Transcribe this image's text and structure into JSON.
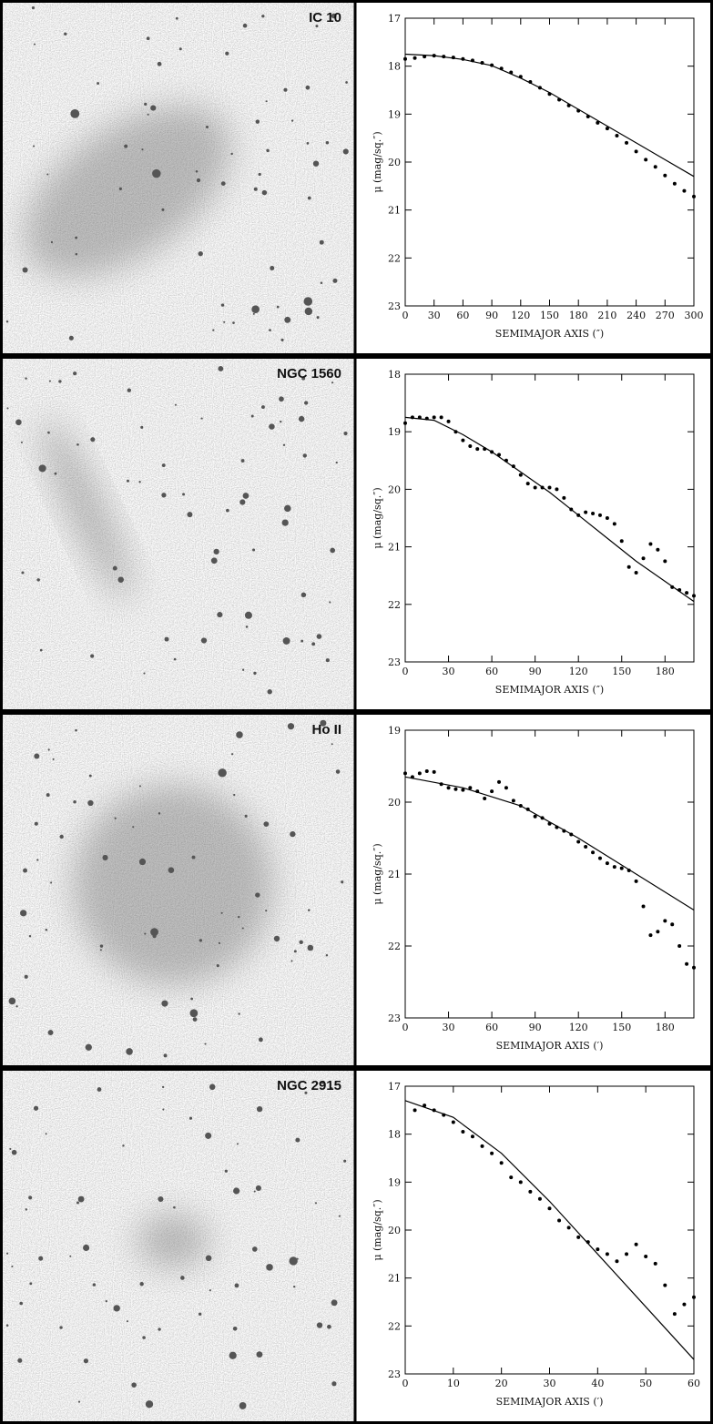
{
  "chart_data": [
    {
      "type": "scatter",
      "title": "IC 10",
      "xlabel": "SEMIMAJOR AXIS (″)",
      "ylabel": "μ (mag/sq.″)",
      "color": "#000000",
      "xlim": [
        0,
        300
      ],
      "xticks": [
        0,
        30,
        60,
        90,
        120,
        150,
        180,
        210,
        240,
        270,
        300
      ],
      "ylim": [
        23,
        17
      ],
      "yticks": [
        17,
        18,
        19,
        20,
        21,
        22,
        23
      ],
      "x": [
        0,
        10,
        20,
        30,
        40,
        50,
        60,
        70,
        80,
        90,
        100,
        110,
        120,
        130,
        140,
        150,
        160,
        170,
        180,
        190,
        200,
        210,
        220,
        230,
        240,
        250,
        260,
        270,
        280,
        290,
        300
      ],
      "values": [
        17.85,
        17.83,
        17.8,
        17.78,
        17.8,
        17.82,
        17.85,
        17.88,
        17.93,
        17.98,
        18.05,
        18.13,
        18.22,
        18.33,
        18.45,
        18.58,
        18.7,
        18.82,
        18.93,
        19.05,
        19.18,
        19.3,
        19.45,
        19.6,
        19.78,
        19.95,
        20.1,
        20.28,
        20.45,
        20.6,
        20.72
      ],
      "fit": {
        "x": [
          0,
          30,
          60,
          90,
          120,
          150,
          180,
          210,
          240,
          270,
          300
        ],
        "values": [
          17.75,
          17.78,
          17.86,
          17.99,
          18.25,
          18.55,
          18.9,
          19.25,
          19.6,
          19.95,
          20.3
        ]
      }
    },
    {
      "type": "scatter",
      "title": "NGC 1560",
      "xlabel": "SEMIMAJOR AXIS (″)",
      "ylabel": "μ (mag/sq.″)",
      "color": "#000000",
      "xlim": [
        0,
        200
      ],
      "xticks": [
        0,
        30,
        60,
        90,
        120,
        150,
        180
      ],
      "ylim": [
        23,
        18
      ],
      "yticks": [
        18,
        19,
        20,
        21,
        22,
        23
      ],
      "x": [
        0,
        5,
        10,
        15,
        20,
        25,
        30,
        35,
        40,
        45,
        50,
        55,
        60,
        65,
        70,
        75,
        80,
        85,
        90,
        95,
        100,
        105,
        110,
        115,
        120,
        125,
        130,
        135,
        140,
        145,
        150,
        155,
        160,
        165,
        170,
        175,
        180,
        185,
        190,
        195,
        200
      ],
      "values": [
        18.85,
        18.75,
        18.75,
        18.77,
        18.75,
        18.75,
        18.82,
        19.0,
        19.15,
        19.25,
        19.3,
        19.3,
        19.35,
        19.4,
        19.5,
        19.6,
        19.75,
        19.9,
        19.97,
        19.97,
        19.97,
        20.0,
        20.15,
        20.35,
        20.45,
        20.4,
        20.42,
        20.45,
        20.5,
        20.6,
        20.9,
        21.35,
        21.45,
        21.2,
        20.95,
        21.05,
        21.25,
        21.7,
        21.75,
        21.8,
        21.85
      ],
      "fit": {
        "x": [
          0,
          20,
          40,
          60,
          80,
          100,
          120,
          140,
          160,
          180,
          200
        ],
        "values": [
          18.75,
          18.8,
          19.05,
          19.35,
          19.7,
          20.05,
          20.45,
          20.85,
          21.25,
          21.6,
          21.95
        ]
      }
    },
    {
      "type": "scatter",
      "title": "Ho II",
      "xlabel": "SEMIMAJOR AXIS (′)",
      "ylabel": "μ (mag/sq.″)",
      "color": "#000000",
      "xlim": [
        0,
        200
      ],
      "xticks": [
        0,
        30,
        60,
        90,
        120,
        150,
        180
      ],
      "ylim": [
        23,
        19
      ],
      "yticks": [
        19,
        20,
        21,
        22,
        23
      ],
      "x": [
        0,
        5,
        10,
        15,
        20,
        25,
        30,
        35,
        40,
        45,
        50,
        55,
        60,
        65,
        70,
        75,
        80,
        85,
        90,
        95,
        100,
        105,
        110,
        115,
        120,
        125,
        130,
        135,
        140,
        145,
        150,
        155,
        160,
        165,
        170,
        175,
        180,
        185,
        190,
        195,
        200
      ],
      "values": [
        19.6,
        19.65,
        19.6,
        19.57,
        19.58,
        19.75,
        19.8,
        19.82,
        19.83,
        19.8,
        19.85,
        19.95,
        19.85,
        19.72,
        19.8,
        19.98,
        20.05,
        20.1,
        20.2,
        20.22,
        20.3,
        20.35,
        20.4,
        20.45,
        20.55,
        20.62,
        20.7,
        20.78,
        20.85,
        20.9,
        20.92,
        20.95,
        21.1,
        21.45,
        21.85,
        21.8,
        21.65,
        21.7,
        22.0,
        22.25,
        22.3
      ],
      "fit": {
        "x": [
          0,
          40,
          80,
          120,
          160,
          200
        ],
        "values": [
          19.65,
          19.8,
          20.05,
          20.5,
          21.0,
          21.5
        ]
      }
    },
    {
      "type": "scatter",
      "title": "NGC 2915",
      "xlabel": "SEMIMAJOR AXIS (′)",
      "ylabel": "μ (mag/sq.″)",
      "color": "#000000",
      "xlim": [
        0,
        60
      ],
      "xticks": [
        0,
        10,
        20,
        30,
        40,
        50,
        60
      ],
      "ylim": [
        23,
        17
      ],
      "yticks": [
        17,
        18,
        19,
        20,
        21,
        22,
        23
      ],
      "x": [
        2,
        4,
        6,
        8,
        10,
        12,
        14,
        16,
        18,
        20,
        22,
        24,
        26,
        28,
        30,
        32,
        34,
        36,
        38,
        40,
        42,
        44,
        46,
        48,
        50,
        52,
        54,
        56,
        58,
        60
      ],
      "values": [
        17.5,
        17.4,
        17.5,
        17.6,
        17.75,
        17.95,
        18.05,
        18.25,
        18.4,
        18.6,
        18.9,
        19.0,
        19.2,
        19.35,
        19.55,
        19.8,
        19.95,
        20.15,
        20.25,
        20.4,
        20.5,
        20.65,
        20.5,
        20.3,
        20.55,
        20.7,
        21.15,
        21.75,
        21.55,
        21.4
      ],
      "fit": {
        "x": [
          0,
          10,
          20,
          30,
          40,
          50,
          60
        ],
        "values": [
          17.3,
          17.65,
          18.4,
          19.4,
          20.5,
          21.6,
          22.7
        ]
      }
    }
  ]
}
